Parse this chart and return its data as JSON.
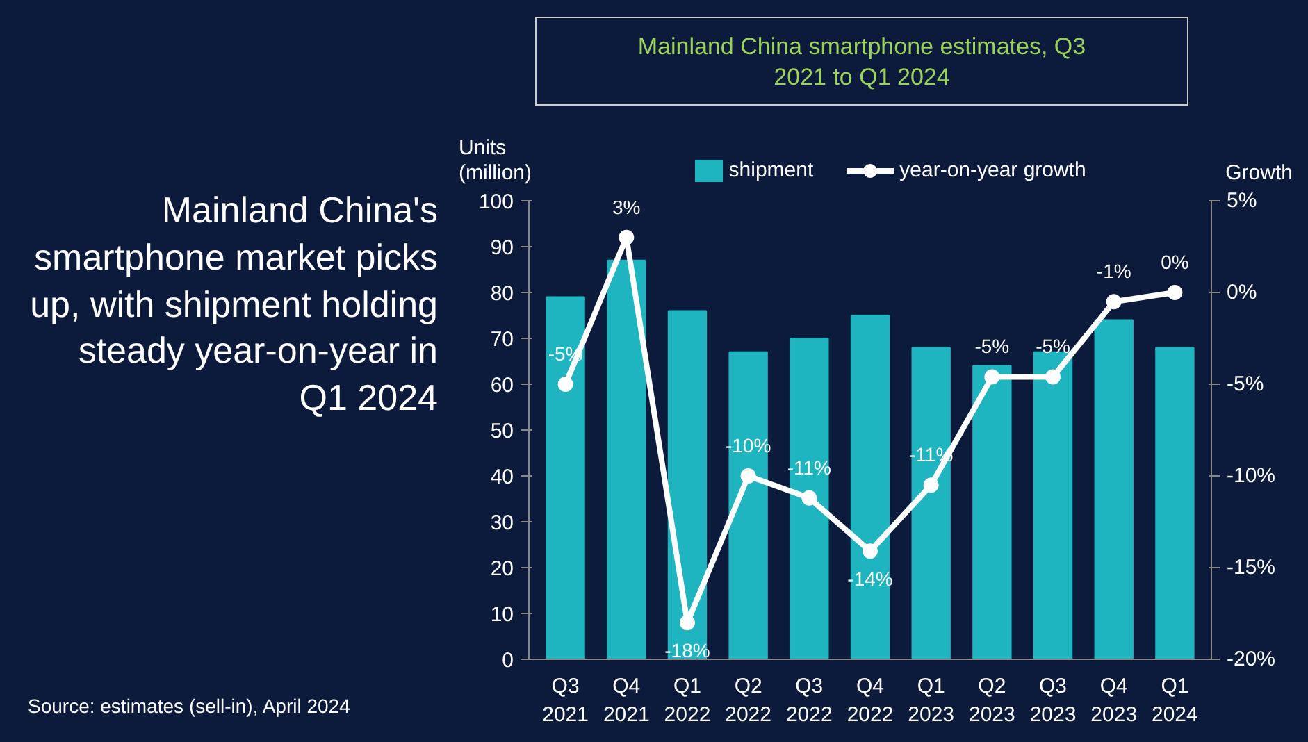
{
  "chart_data": {
    "type": "bar",
    "title": "Mainland China's smartphone market picks up, with shipment holding steady year-on-year in Q1 2024",
    "subtitle": "Mainland China smartphone estimates, Q3 2021 to Q1 2024",
    "ylabel": "Units (million)",
    "y2label": "Growth",
    "categories": [
      "Q3 2021",
      "Q4 2021",
      "Q1 2022",
      "Q2 2022",
      "Q3 2022",
      "Q4 2022",
      "Q1 2023",
      "Q2 2023",
      "Q3 2023",
      "Q4 2023",
      "Q1 2024"
    ],
    "series": [
      {
        "name": "shipment",
        "color": "#1fb5c0",
        "values": [
          79,
          87,
          76,
          67,
          70,
          75,
          68,
          64,
          67,
          74,
          68
        ]
      },
      {
        "name": "year-on-year growth",
        "type": "line",
        "axis": "y2",
        "color": "#ffffff",
        "marker": "circle",
        "values": [
          -5,
          3,
          -18,
          -10,
          -11.2,
          -14.1,
          -10.5,
          -4.6,
          -4.6,
          -0.5,
          0
        ],
        "value_labels": [
          "-5%",
          "3%",
          "-18%",
          "-10%",
          "-11%",
          "-14%",
          "-11%",
          "-5%",
          "-5%",
          "-1%",
          "0%"
        ]
      }
    ],
    "ylim": [
      0,
      100
    ],
    "yticks": [
      0,
      10,
      20,
      30,
      40,
      50,
      60,
      70,
      80,
      90,
      100
    ],
    "y2lim": [
      -20,
      5
    ],
    "y2ticks": [
      {
        "value": -20,
        "label": "-20%"
      },
      {
        "value": -15,
        "label": "-15%"
      },
      {
        "value": -10,
        "label": "-10%"
      },
      {
        "value": -5,
        "label": "-5%"
      },
      {
        "value": 0,
        "label": "0%"
      },
      {
        "value": 5,
        "label": "5%"
      }
    ],
    "grid": false,
    "legend": "top",
    "annotations": [
      "Source: estimates (sell-in), April 2024"
    ]
  }
}
